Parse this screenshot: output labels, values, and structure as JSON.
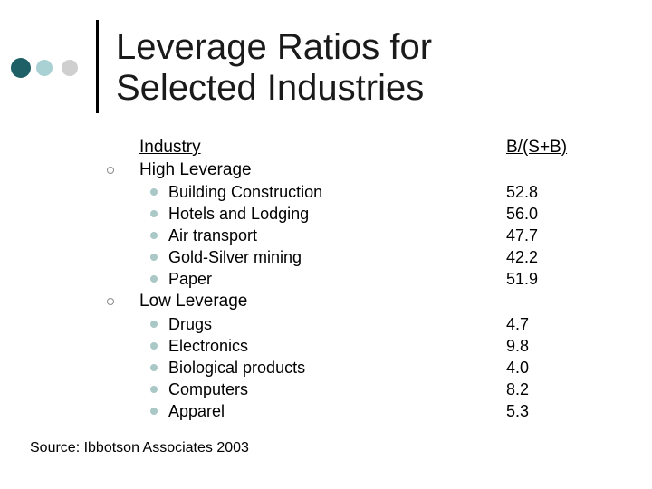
{
  "slide": {
    "title_line1": "Leverage Ratios for",
    "title_line2": "Selected Industries",
    "header_industry": "Industry",
    "header_ratio": "B/(S+B)",
    "source": "Source:  Ibbotson Associates 2003",
    "decor_colors": [
      "#1f5f66",
      "#a9d0d3",
      "#cfcfcf"
    ],
    "bullet_color": "#a9c8c6"
  },
  "groups": [
    {
      "label": "High Leverage",
      "items": [
        {
          "name": "Building Construction",
          "value": "52.8"
        },
        {
          "name": "Hotels and Lodging",
          "value": "56.0"
        },
        {
          "name": "Air transport",
          "value": "47.7"
        },
        {
          "name": "Gold-Silver mining",
          "value": "42.2"
        },
        {
          "name": "Paper",
          "value": "51.9"
        }
      ]
    },
    {
      "label": "Low Leverage",
      "items": [
        {
          "name": "Drugs",
          "value": "4.7"
        },
        {
          "name": "Electronics",
          "value": "9.8"
        },
        {
          "name": "Biological products",
          "value": "4.0"
        },
        {
          "name": "Computers",
          "value": "8.2"
        },
        {
          "name": "Apparel",
          "value": "5.3"
        }
      ]
    }
  ]
}
